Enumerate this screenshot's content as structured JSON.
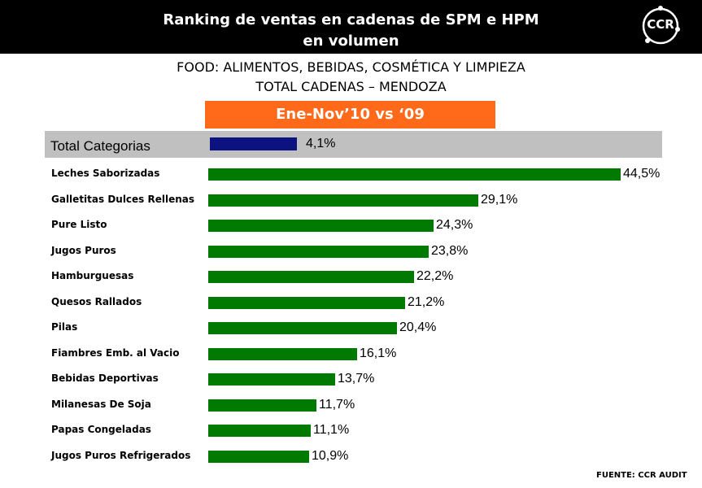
{
  "header": {
    "title_line1": "Ranking de ventas en cadenas de SPM e HPM",
    "title_line2": "en volumen",
    "logo_text": "CCR"
  },
  "subtitle_line1": "FOOD: ALIMENTOS, BEBIDAS, COSMÉTICA Y LIMPIEZA",
  "subtitle_line2": "TOTAL CADENAS – MENDOZA",
  "period": "Ene-Nov’10 vs ‘09",
  "source": "FUENTE: CCR AUDIT",
  "colors": {
    "header": "#000000",
    "period": "#ff6a1a",
    "total_bar": "#0c1280",
    "bars": "#007a00",
    "total_band": "#c0c0c0"
  },
  "chart_data": {
    "type": "bar",
    "orientation": "horizontal",
    "total": {
      "label": "Total Categorias",
      "value": 4.1,
      "value_label": "4,1%"
    },
    "categories": [
      "Leches Saborizadas",
      "Galletitas Dulces Rellenas",
      "Pure Listo",
      "Jugos Puros",
      "Hamburguesas",
      "Quesos Rallados",
      "Pilas",
      "Fiambres Emb. al Vacio",
      "Bebidas Deportivas",
      "Milanesas De Soja",
      "Papas Congeladas",
      "Jugos Puros Refrigerados"
    ],
    "values": [
      44.5,
      29.1,
      24.3,
      23.8,
      22.2,
      21.2,
      20.4,
      16.1,
      13.7,
      11.7,
      11.1,
      10.9
    ],
    "value_labels": [
      "44,5%",
      "29,1%",
      "24,3%",
      "23,8%",
      "22,2%",
      "21,2%",
      "20,4%",
      "16,1%",
      "13,7%",
      "11,7%",
      "11,1%",
      "10,9%"
    ]
  }
}
